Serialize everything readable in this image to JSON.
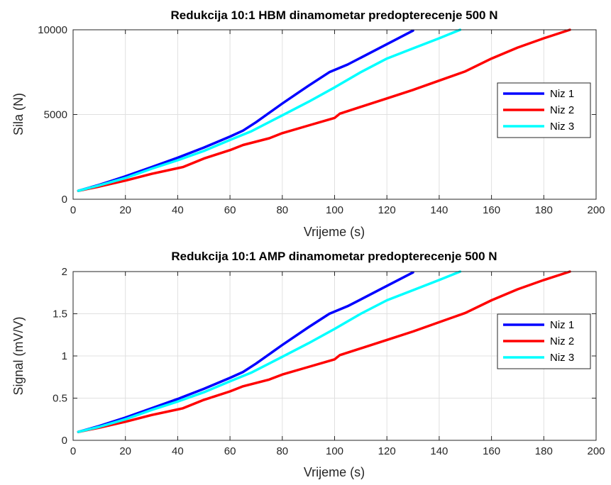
{
  "chart_data": [
    {
      "type": "line",
      "title": "Redukcija 10:1 HBM dinamometar predopterecenje 500 N",
      "xlabel": "Vrijeme (s)",
      "ylabel": "Sila (N)",
      "xlim": [
        0,
        200
      ],
      "ylim": [
        0,
        10000
      ],
      "xticks": [
        "0",
        "20",
        "40",
        "60",
        "80",
        "100",
        "120",
        "140",
        "160",
        "180",
        "200"
      ],
      "yticks": [
        "0",
        "5000",
        "10000"
      ],
      "xtick_values": [
        0,
        20,
        40,
        60,
        80,
        100,
        120,
        140,
        160,
        180,
        200
      ],
      "ytick_values": [
        0,
        5000,
        10000
      ],
      "grid": true,
      "legend_placement": "right",
      "series": [
        {
          "name": "Niz 1",
          "color": "#0000ff",
          "x": [
            2,
            10,
            20,
            30,
            40,
            50,
            60,
            65,
            70,
            80,
            90,
            98,
            105,
            110,
            120,
            130
          ],
          "y": [
            500,
            850,
            1350,
            1900,
            2450,
            3050,
            3700,
            4050,
            4550,
            5650,
            6700,
            7500,
            7950,
            8350,
            9150,
            9950
          ]
        },
        {
          "name": "Niz 2",
          "color": "#ff0000",
          "x": [
            2,
            10,
            20,
            30,
            42,
            50,
            60,
            65,
            75,
            80,
            90,
            100,
            102,
            110,
            120,
            130,
            140,
            150,
            160,
            170,
            180,
            190
          ],
          "y": [
            500,
            750,
            1100,
            1500,
            1900,
            2400,
            2900,
            3200,
            3600,
            3900,
            4350,
            4800,
            5050,
            5450,
            5950,
            6450,
            7000,
            7550,
            8300,
            8950,
            9500,
            10000
          ]
        },
        {
          "name": "Niz 3",
          "color": "#00ffff",
          "x": [
            2,
            10,
            20,
            30,
            40,
            50,
            60,
            68,
            80,
            90,
            100,
            110,
            120,
            130,
            140,
            148
          ],
          "y": [
            500,
            820,
            1250,
            1800,
            2300,
            2850,
            3500,
            4000,
            4950,
            5750,
            6600,
            7500,
            8300,
            8900,
            9500,
            10000
          ]
        }
      ]
    },
    {
      "type": "line",
      "title": "Redukcija 10:1 AMP dinamometar predopterecenje 500 N",
      "xlabel": "Vrijeme (s)",
      "ylabel": "Signal (mV/V)",
      "xlim": [
        0,
        200
      ],
      "ylim": [
        0,
        2
      ],
      "xticks": [
        "0",
        "20",
        "40",
        "60",
        "80",
        "100",
        "120",
        "140",
        "160",
        "180",
        "200"
      ],
      "yticks": [
        "0",
        "0.5",
        "1",
        "1.5",
        "2"
      ],
      "xtick_values": [
        0,
        20,
        40,
        60,
        80,
        100,
        120,
        140,
        160,
        180,
        200
      ],
      "ytick_values": [
        0,
        0.5,
        1,
        1.5,
        2
      ],
      "grid": true,
      "legend_placement": "right",
      "series": [
        {
          "name": "Niz 1",
          "color": "#0000ff",
          "x": [
            2,
            10,
            20,
            30,
            40,
            50,
            60,
            65,
            70,
            80,
            90,
            98,
            105,
            110,
            120,
            130
          ],
          "y": [
            0.1,
            0.17,
            0.27,
            0.38,
            0.49,
            0.61,
            0.74,
            0.81,
            0.91,
            1.13,
            1.34,
            1.5,
            1.59,
            1.67,
            1.83,
            1.99
          ]
        },
        {
          "name": "Niz 2",
          "color": "#ff0000",
          "x": [
            2,
            10,
            20,
            30,
            42,
            50,
            60,
            65,
            75,
            80,
            90,
            100,
            102,
            110,
            120,
            130,
            140,
            150,
            160,
            170,
            180,
            190
          ],
          "y": [
            0.1,
            0.15,
            0.22,
            0.3,
            0.38,
            0.48,
            0.58,
            0.64,
            0.72,
            0.78,
            0.87,
            0.96,
            1.01,
            1.09,
            1.19,
            1.29,
            1.4,
            1.51,
            1.66,
            1.79,
            1.9,
            2.0
          ]
        },
        {
          "name": "Niz 3",
          "color": "#00ffff",
          "x": [
            2,
            10,
            20,
            30,
            40,
            50,
            60,
            68,
            80,
            90,
            100,
            110,
            120,
            130,
            140,
            148
          ],
          "y": [
            0.1,
            0.16,
            0.25,
            0.36,
            0.46,
            0.57,
            0.7,
            0.8,
            0.99,
            1.15,
            1.32,
            1.5,
            1.66,
            1.78,
            1.9,
            2.0
          ]
        }
      ]
    }
  ]
}
